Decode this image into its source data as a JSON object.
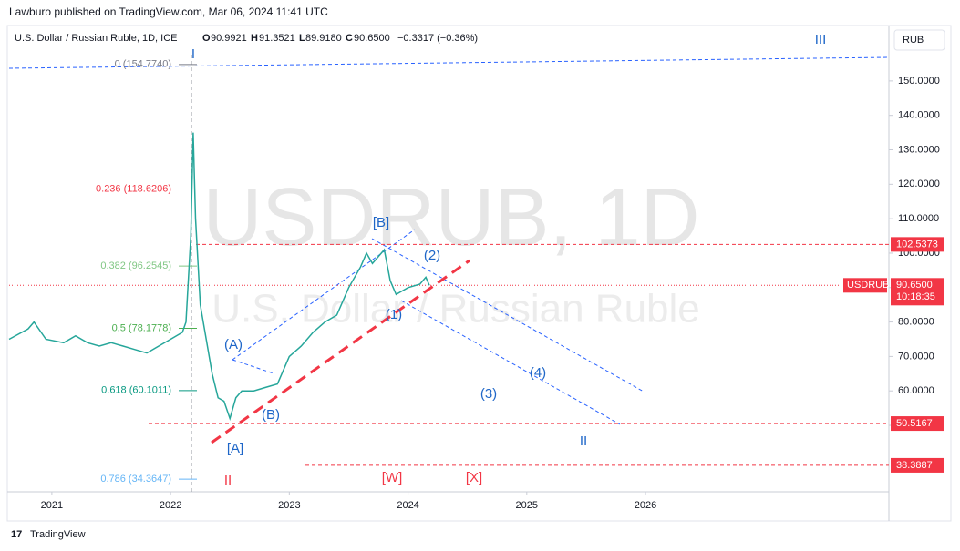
{
  "header": {
    "published": "Lawburo published on TradingView.com, Mar 06, 2024 11:41 UTC",
    "symbol": "U.S. Dollar / Russian Ruble, 1D, ICE",
    "open": "90.9921",
    "high": "91.3521",
    "low": "89.9180",
    "close": "90.6500",
    "change": "−0.3317 (−0.36%)",
    "currency": "RUB"
  },
  "watermark": {
    "symbol": "USDRUB, 1D",
    "name": "U.S. Dollar / Russian Ruble"
  },
  "footer": "TradingView",
  "chart_data": {
    "type": "line",
    "color": "#26a69a",
    "x": [
      2020.64,
      2020.8,
      2020.85,
      2020.95,
      2021.1,
      2021.2,
      2021.3,
      2021.4,
      2021.5,
      2021.6,
      2021.7,
      2021.8,
      2021.9,
      2022.0,
      2022.1,
      2022.13,
      2022.17,
      2022.19,
      2022.21,
      2022.25,
      2022.3,
      2022.35,
      2022.4,
      2022.45,
      2022.5,
      2022.55,
      2022.6,
      2022.7,
      2022.8,
      2022.9,
      2023.0,
      2023.1,
      2023.2,
      2023.3,
      2023.4,
      2023.5,
      2023.6,
      2023.65,
      2023.7,
      2023.75,
      2023.8,
      2023.85,
      2023.9,
      2023.95,
      2024.0,
      2024.1,
      2024.15,
      2024.18
    ],
    "values": [
      75,
      78,
      80,
      75,
      74,
      76,
      74,
      73,
      74,
      73,
      72,
      71,
      73,
      75,
      77,
      80,
      105,
      135,
      110,
      85,
      75,
      65,
      58,
      57,
      52,
      58,
      60,
      60,
      61,
      62,
      70,
      73,
      77,
      80,
      82,
      90,
      96,
      100,
      97,
      99,
      101,
      92,
      88,
      89,
      90,
      91,
      93,
      90.65
    ],
    "xlim": [
      2020.64,
      2028.05
    ],
    "xticks": [
      2021,
      2022,
      2023,
      2024,
      2025,
      2026
    ],
    "ylim": [
      30.7,
      166.1
    ],
    "yticks": [
      {
        "value": 50,
        "label": "50.0000"
      },
      {
        "value": 60,
        "label": "60.0000"
      },
      {
        "value": 70,
        "label": "70.0000"
      },
      {
        "value": 80,
        "label": "80.0000"
      },
      {
        "value": 90,
        "label": "90.0000"
      },
      {
        "value": 100,
        "label": "100.0000"
      },
      {
        "value": 110,
        "label": "110.0000"
      },
      {
        "value": 120,
        "label": "120.0000"
      },
      {
        "value": 130,
        "label": "130.0000"
      },
      {
        "value": 140,
        "label": "140.0000"
      },
      {
        "value": 150,
        "label": "150.0000"
      }
    ],
    "fib_levels": [
      {
        "value": 154.774,
        "label": "0 (154.7740)",
        "color": "#787b86"
      },
      {
        "value": 118.6206,
        "label": "0.236 (118.6206)",
        "color": "#f23645"
      },
      {
        "value": 96.2545,
        "label": "0.382 (96.2545)",
        "color": "#81c784"
      },
      {
        "value": 78.1778,
        "label": "0.5 (78.1778)",
        "color": "#4caf50"
      },
      {
        "value": 60.1011,
        "label": "0.618 (60.1011)",
        "color": "#089981"
      },
      {
        "value": 34.3647,
        "label": "0.786 (34.3647)",
        "color": "#64b5f6"
      }
    ],
    "price_lines": [
      {
        "value": 102.5373,
        "label": "102.5373",
        "color": "#f23645"
      },
      {
        "value": 50.5167,
        "label": "50.5167",
        "color": "#f23645"
      },
      {
        "value": 38.3887,
        "label": "38.3887",
        "color": "#f23645"
      }
    ],
    "last_price": {
      "value": 90.65,
      "label": "90.6500",
      "symbol": "USDRUB",
      "countdown": "10:18:35",
      "color": "#f23645"
    },
    "wave_labels": [
      "I",
      "III",
      "[B]",
      "(2)",
      "(A)",
      "(1)",
      "(4)",
      "(3)",
      "(B)",
      "[A]",
      "II",
      "II",
      "[W]",
      "[X]"
    ]
  }
}
